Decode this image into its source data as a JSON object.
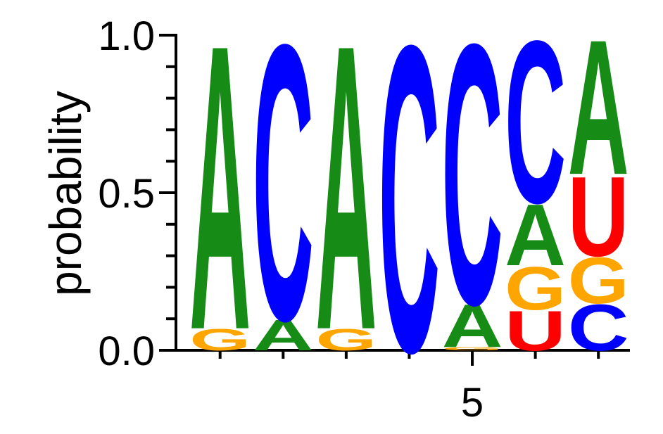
{
  "chart_data": {
    "type": "logo",
    "x": [
      1,
      2,
      3,
      4,
      5,
      6,
      7
    ],
    "series": [
      {
        "name": "A",
        "color": "#168c16",
        "values": [
          0.93,
          0.1,
          0.93,
          0,
          0.14,
          0.2,
          0.44
        ]
      },
      {
        "name": "C",
        "color": "#0000ff",
        "values": [
          0,
          0.9,
          0,
          1.0,
          0.85,
          0.53,
          0.15
        ]
      },
      {
        "name": "G",
        "color": "#ffa500",
        "values": [
          0.07,
          0,
          0.07,
          0,
          0.01,
          0.14,
          0.15
        ]
      },
      {
        "name": "U",
        "color": "#ff0000",
        "values": [
          0,
          0,
          0,
          0,
          0,
          0.13,
          0.26
        ]
      }
    ],
    "ylabel": "probability",
    "xlim": [
      0.3,
      7.5
    ],
    "ylim": [
      0,
      1
    ],
    "xticks": [
      {
        "value": 5,
        "label": "5"
      }
    ],
    "minor_xticks": [
      1,
      2,
      3,
      4,
      6,
      7
    ],
    "yticks": [
      {
        "value": 0,
        "label": "0.0"
      },
      {
        "value": 0.5,
        "label": "0.5"
      },
      {
        "value": 1,
        "label": "1.0"
      }
    ],
    "minor_yticks": [
      0.1,
      0.2,
      0.3,
      0.4,
      0.6,
      0.7,
      0.8,
      0.9
    ]
  }
}
